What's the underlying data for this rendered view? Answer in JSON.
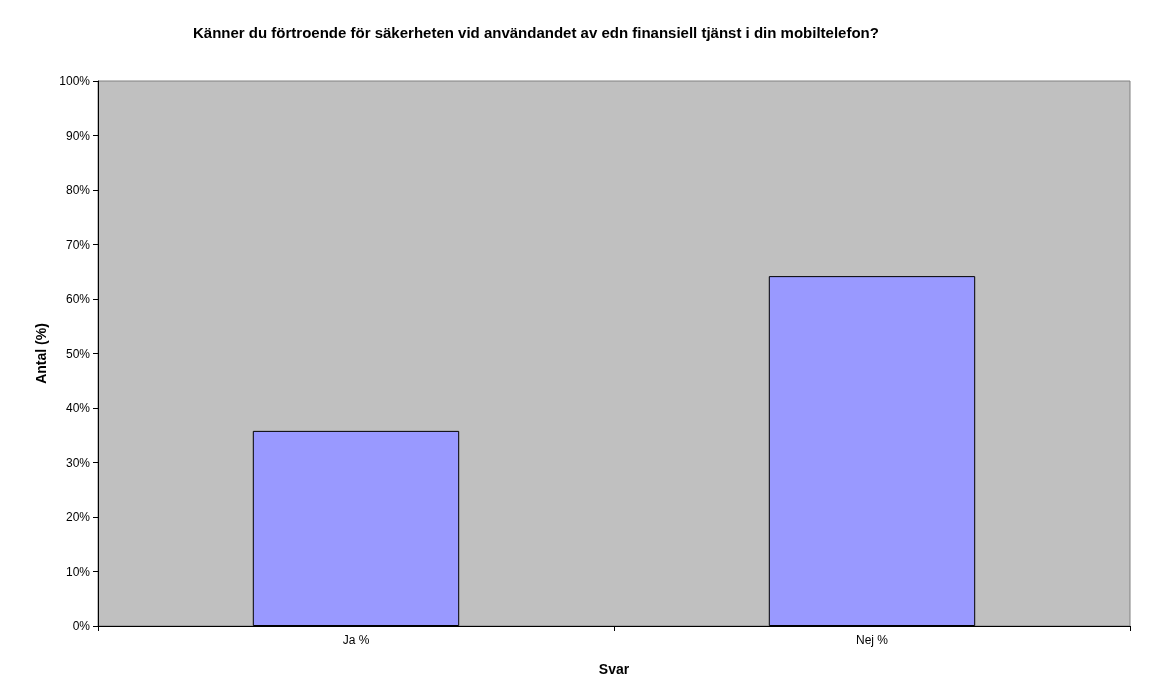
{
  "chart_data": {
    "type": "bar",
    "title": "Känner du förtroende för säkerheten vid användandet av edn finansiell tjänst i din mobiltelefon?",
    "xlabel": "Svar",
    "ylabel": "Antal (%)",
    "categories": [
      "Ja %",
      "Nej %"
    ],
    "values": [
      35.8,
      64.2
    ],
    "color": "#9999ff",
    "ylim": [
      0,
      100
    ],
    "yticks": [
      {
        "value": 0,
        "label": "0%"
      },
      {
        "value": 10,
        "label": "10%"
      },
      {
        "value": 20,
        "label": "20%"
      },
      {
        "value": 30,
        "label": "30%"
      },
      {
        "value": 40,
        "label": "40%"
      },
      {
        "value": 50,
        "label": "50%"
      },
      {
        "value": 60,
        "label": "60%"
      },
      {
        "value": 70,
        "label": "70%"
      },
      {
        "value": 80,
        "label": "80%"
      },
      {
        "value": 90,
        "label": "90%"
      },
      {
        "value": 100,
        "label": "100%"
      }
    ],
    "grid": false
  }
}
